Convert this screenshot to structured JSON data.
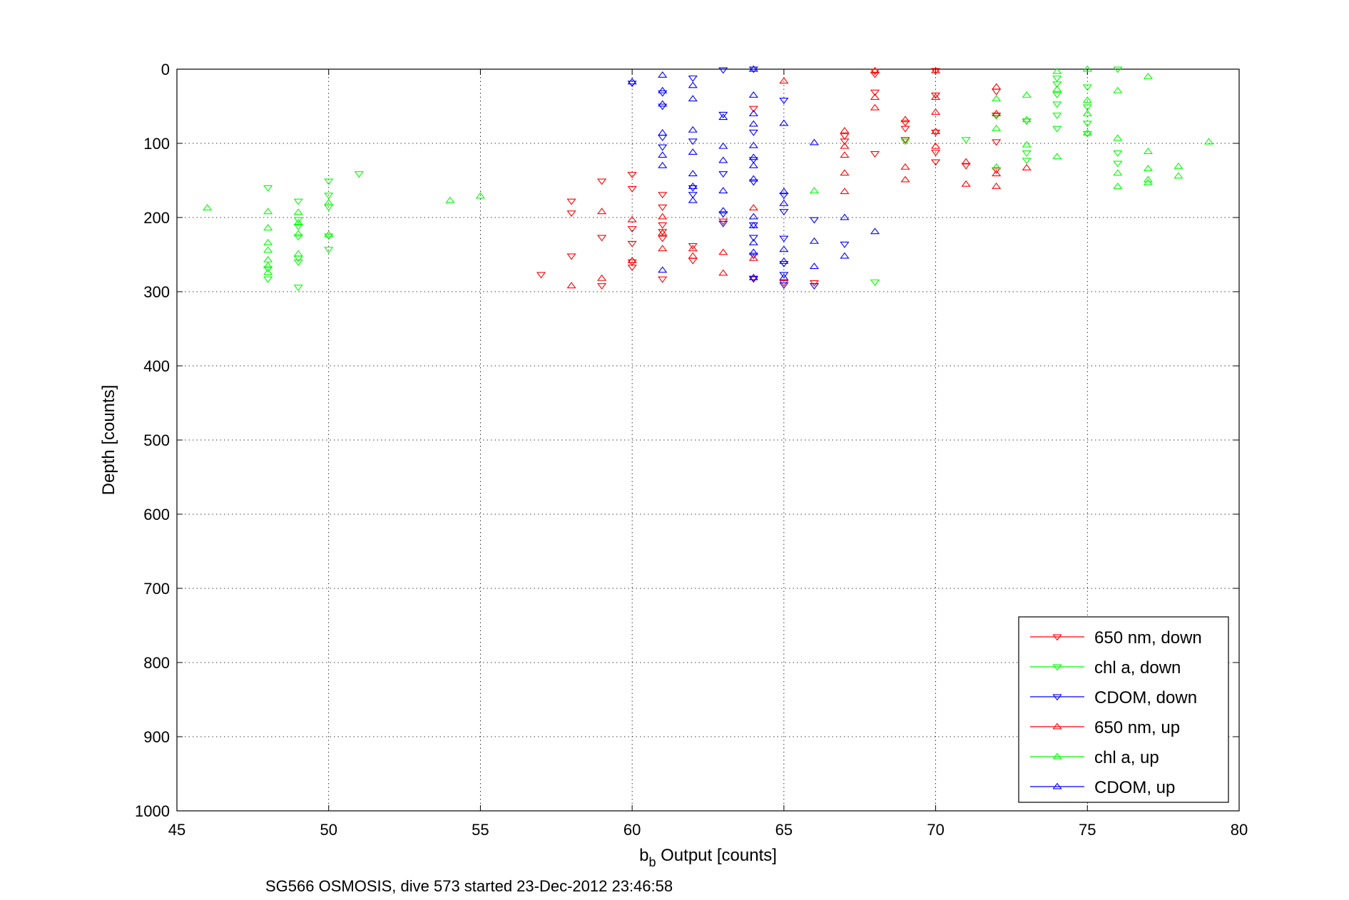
{
  "chart_data": {
    "type": "scatter",
    "xlabel_main": "b",
    "xlabel_sub": "b",
    "xlabel_rest": " Output [counts]",
    "ylabel": "Depth [counts]",
    "caption": "SG566 OSMOSIS, dive 573 started 23-Dec-2012 23:46:58",
    "xlim": [
      45,
      80
    ],
    "ylim": [
      0,
      1000
    ],
    "y_reversed": true,
    "grid": true,
    "x_ticks": [
      "45",
      "50",
      "55",
      "60",
      "65",
      "70",
      "75",
      "80"
    ],
    "y_ticks": [
      "0",
      "100",
      "200",
      "300",
      "400",
      "500",
      "600",
      "700",
      "800",
      "900",
      "1000"
    ],
    "legend_position": "bottom-right",
    "series": [
      {
        "name": "650 nm, down",
        "color": "#ff0000",
        "marker": "triangle-down",
        "points": [
          [
            57,
            277
          ],
          [
            58,
            178
          ],
          [
            58,
            194
          ],
          [
            58,
            252
          ],
          [
            59,
            151
          ],
          [
            59,
            227
          ],
          [
            59,
            292
          ],
          [
            60,
            142
          ],
          [
            60,
            161
          ],
          [
            60,
            215
          ],
          [
            60,
            235
          ],
          [
            60,
            260
          ],
          [
            60,
            267
          ],
          [
            61,
            169
          ],
          [
            61,
            186
          ],
          [
            61,
            210
          ],
          [
            61,
            219
          ],
          [
            61,
            228
          ],
          [
            61,
            283
          ],
          [
            62,
            238
          ],
          [
            62,
            258
          ],
          [
            63,
            205
          ],
          [
            64,
            53
          ],
          [
            64,
            283
          ],
          [
            65,
            288
          ],
          [
            66,
            288
          ],
          [
            67,
            97
          ],
          [
            67,
            90
          ],
          [
            68,
            7
          ],
          [
            68,
            31
          ],
          [
            68,
            114
          ],
          [
            68,
            3
          ],
          [
            69,
            80
          ],
          [
            69,
            72
          ],
          [
            69,
            95
          ],
          [
            70,
            35
          ],
          [
            70,
            85
          ],
          [
            70,
            112
          ],
          [
            70,
            125
          ],
          [
            70,
            2
          ],
          [
            71,
            130
          ],
          [
            72,
            62
          ],
          [
            72,
            98
          ],
          [
            72,
            136
          ],
          [
            72,
            30
          ],
          [
            73,
            70
          ]
        ]
      },
      {
        "name": "chl a, down",
        "color": "#00ff00",
        "marker": "triangle-down",
        "points": [
          [
            48,
            160
          ],
          [
            48,
            269
          ],
          [
            48,
            283
          ],
          [
            49,
            178
          ],
          [
            49,
            203
          ],
          [
            49,
            212
          ],
          [
            49,
            226
          ],
          [
            49,
            255
          ],
          [
            49,
            260
          ],
          [
            49,
            294
          ],
          [
            50,
            151
          ],
          [
            50,
            170
          ],
          [
            50,
            186
          ],
          [
            50,
            225
          ],
          [
            50,
            243
          ],
          [
            51,
            141
          ],
          [
            68,
            287
          ],
          [
            69,
            97
          ],
          [
            71,
            95
          ],
          [
            72,
            63
          ],
          [
            73,
            70
          ],
          [
            73,
            113
          ],
          [
            73,
            123
          ],
          [
            74,
            12
          ],
          [
            74,
            34
          ],
          [
            74,
            47
          ],
          [
            74,
            62
          ],
          [
            74,
            80
          ],
          [
            74,
            20
          ],
          [
            75,
            24
          ],
          [
            75,
            51
          ],
          [
            75,
            73
          ],
          [
            75,
            87
          ],
          [
            76,
            0
          ],
          [
            76,
            113
          ],
          [
            76,
            127
          ]
        ]
      },
      {
        "name": "CDOM, down",
        "color": "#0000ff",
        "marker": "triangle-down",
        "points": [
          [
            60,
            19
          ],
          [
            61,
            32
          ],
          [
            61,
            50
          ],
          [
            61,
            92
          ],
          [
            61,
            105
          ],
          [
            62,
            12
          ],
          [
            62,
            97
          ],
          [
            62,
            160
          ],
          [
            62,
            169
          ],
          [
            63,
            1
          ],
          [
            63,
            61
          ],
          [
            63,
            141
          ],
          [
            63,
            195
          ],
          [
            63,
            208
          ],
          [
            64,
            0
          ],
          [
            64,
            85
          ],
          [
            64,
            122
          ],
          [
            64,
            152
          ],
          [
            64,
            210
          ],
          [
            64,
            227
          ],
          [
            64,
            251
          ],
          [
            64,
            282
          ],
          [
            65,
            42
          ],
          [
            65,
            170
          ],
          [
            65,
            192
          ],
          [
            65,
            228
          ],
          [
            65,
            262
          ],
          [
            65,
            277
          ],
          [
            65,
            291
          ],
          [
            66,
            203
          ],
          [
            66,
            292
          ],
          [
            67,
            236
          ]
        ]
      },
      {
        "name": "650 nm, up",
        "color": "#ff0000",
        "marker": "triangle-up",
        "points": [
          [
            58,
            292
          ],
          [
            59,
            192
          ],
          [
            59,
            282
          ],
          [
            60,
            203
          ],
          [
            60,
            258
          ],
          [
            61,
            199
          ],
          [
            61,
            221
          ],
          [
            61,
            242
          ],
          [
            62,
            242
          ],
          [
            62,
            252
          ],
          [
            63,
            247
          ],
          [
            63,
            275
          ],
          [
            64,
            187
          ],
          [
            64,
            255
          ],
          [
            65,
            16
          ],
          [
            67,
            83
          ],
          [
            67,
            104
          ],
          [
            67,
            116
          ],
          [
            67,
            140
          ],
          [
            67,
            165
          ],
          [
            68,
            2
          ],
          [
            68,
            38
          ],
          [
            68,
            52
          ],
          [
            69,
            68
          ],
          [
            69,
            132
          ],
          [
            69,
            149
          ],
          [
            70,
            2
          ],
          [
            70,
            38
          ],
          [
            70,
            58
          ],
          [
            70,
            84
          ],
          [
            70,
            104
          ],
          [
            71,
            125
          ],
          [
            71,
            155
          ],
          [
            72,
            24
          ],
          [
            72,
            60
          ],
          [
            72,
            141
          ],
          [
            72,
            158
          ],
          [
            73,
            133
          ]
        ]
      },
      {
        "name": "chl a, up",
        "color": "#00ff00",
        "marker": "triangle-up",
        "points": [
          [
            46,
            187
          ],
          [
            48,
            192
          ],
          [
            48,
            214
          ],
          [
            48,
            234
          ],
          [
            48,
            244
          ],
          [
            48,
            257
          ],
          [
            48,
            265
          ],
          [
            48,
            274
          ],
          [
            49,
            193
          ],
          [
            49,
            207
          ],
          [
            49,
            222
          ],
          [
            49,
            249
          ],
          [
            50,
            180
          ],
          [
            50,
            223
          ],
          [
            54,
            177
          ],
          [
            55,
            171
          ],
          [
            66,
            164
          ],
          [
            72,
            80
          ],
          [
            72,
            40
          ],
          [
            72,
            132
          ],
          [
            73,
            35
          ],
          [
            73,
            68
          ],
          [
            73,
            102
          ],
          [
            74,
            3
          ],
          [
            74,
            27
          ],
          [
            74,
            118
          ],
          [
            75,
            0
          ],
          [
            75,
            42
          ],
          [
            75,
            60
          ],
          [
            75,
            86
          ],
          [
            76,
            29
          ],
          [
            76,
            93
          ],
          [
            76,
            140
          ],
          [
            76,
            158
          ],
          [
            77,
            10
          ],
          [
            77,
            111
          ],
          [
            77,
            134
          ],
          [
            77,
            149
          ],
          [
            77,
            153
          ],
          [
            78,
            131
          ],
          [
            78,
            144
          ],
          [
            79,
            98
          ]
        ]
      },
      {
        "name": "CDOM, up",
        "color": "#0000ff",
        "marker": "triangle-up",
        "points": [
          [
            60,
            17
          ],
          [
            61,
            8
          ],
          [
            61,
            29
          ],
          [
            61,
            47
          ],
          [
            61,
            86
          ],
          [
            61,
            116
          ],
          [
            61,
            130
          ],
          [
            61,
            271
          ],
          [
            62,
            22
          ],
          [
            62,
            40
          ],
          [
            62,
            82
          ],
          [
            62,
            112
          ],
          [
            62,
            141
          ],
          [
            62,
            158
          ],
          [
            62,
            177
          ],
          [
            63,
            65
          ],
          [
            63,
            104
          ],
          [
            63,
            123
          ],
          [
            63,
            164
          ],
          [
            63,
            191
          ],
          [
            64,
            0
          ],
          [
            64,
            35
          ],
          [
            64,
            60
          ],
          [
            64,
            74
          ],
          [
            64,
            103
          ],
          [
            64,
            119
          ],
          [
            64,
            130
          ],
          [
            64,
            148
          ],
          [
            64,
            199
          ],
          [
            64,
            211
          ],
          [
            64,
            234
          ],
          [
            64,
            247
          ],
          [
            64,
            281
          ],
          [
            65,
            73
          ],
          [
            65,
            165
          ],
          [
            65,
            181
          ],
          [
            65,
            243
          ],
          [
            65,
            259
          ],
          [
            65,
            281
          ],
          [
            66,
            99
          ],
          [
            66,
            232
          ],
          [
            66,
            266
          ],
          [
            67,
            200
          ],
          [
            67,
            252
          ],
          [
            68,
            219
          ]
        ]
      }
    ]
  }
}
